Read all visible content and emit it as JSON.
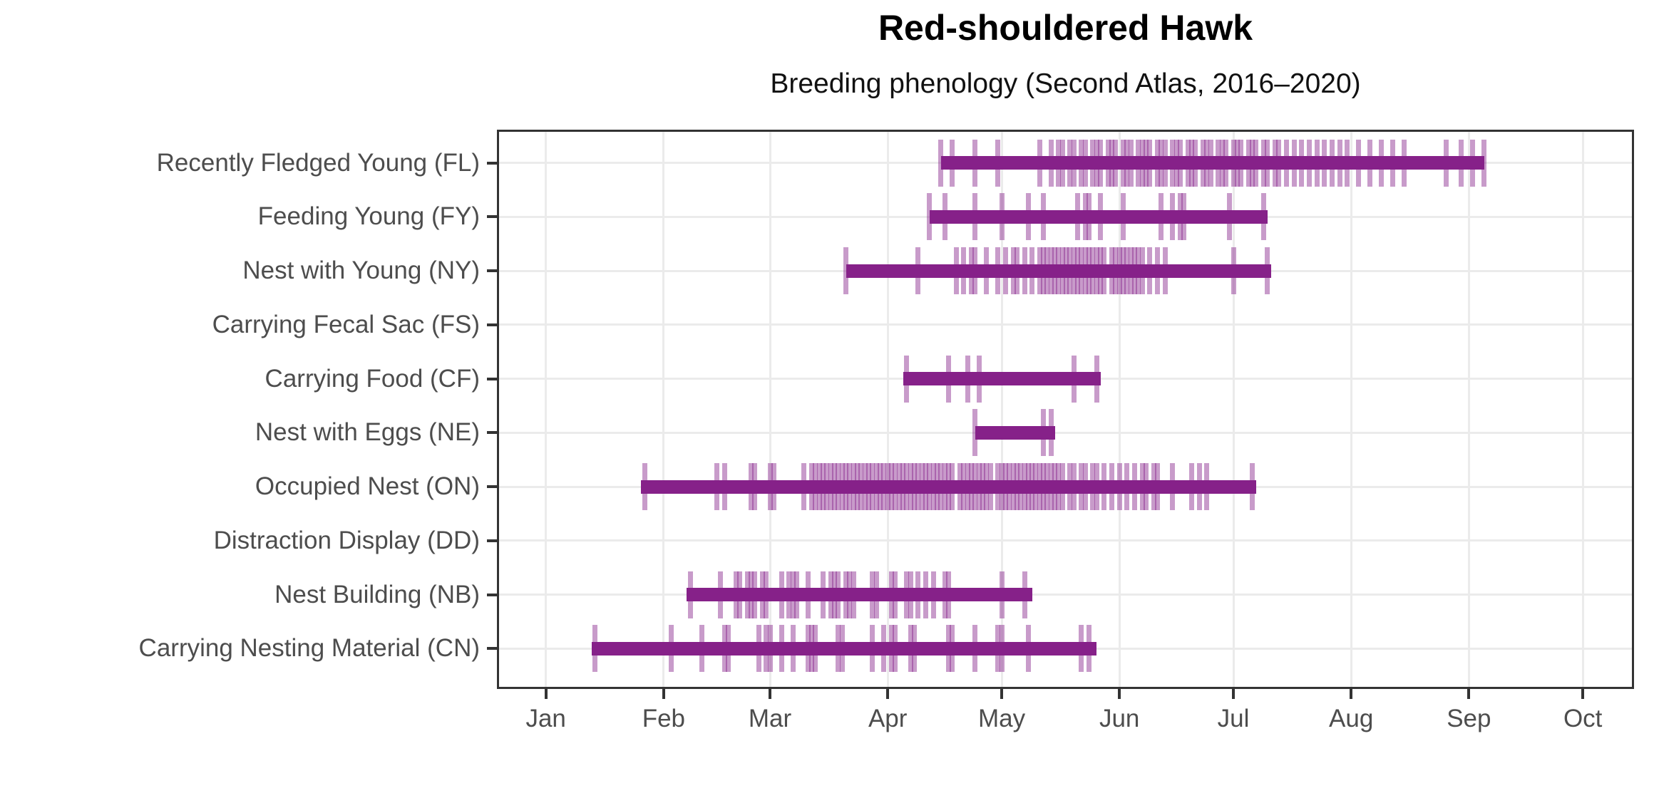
{
  "title": "Red-shouldered Hawk",
  "subtitle": "Breeding phenology (Second Atlas, 2016–2020)",
  "colors": {
    "bar": "#862189",
    "observation_tick": "rgba(134,33,137,0.45)",
    "gridline": "#EBEBEB",
    "panel_border": "#333333",
    "axis_tick": "#333333",
    "axis_text": "#4D4D4D",
    "title_text": "#000000",
    "background": "#FFFFFF"
  },
  "chart_data": {
    "type": "bar",
    "variant": "horizontal-range-phenology-timeline",
    "title": "Red-shouldered Hawk",
    "subtitle": "Breeding phenology (Second Atlas, 2016–2020)",
    "x_unit": "day-of-year",
    "grid": "on",
    "legend": "none",
    "x_axis": {
      "domain_days": [
        -12,
        288
      ],
      "months": [
        {
          "label": "Jan",
          "day": 1
        },
        {
          "label": "Feb",
          "day": 32
        },
        {
          "label": "Mar",
          "day": 60
        },
        {
          "label": "Apr",
          "day": 91
        },
        {
          "label": "May",
          "day": 121
        },
        {
          "label": "Jun",
          "day": 152
        },
        {
          "label": "Jul",
          "day": 182
        },
        {
          "label": "Aug",
          "day": 213
        },
        {
          "label": "Sep",
          "day": 244
        },
        {
          "label": "Oct",
          "day": 274
        }
      ]
    },
    "rows": [
      {
        "code": "FL",
        "label": "Recently Fledged Young (FL)",
        "bar": [
          105,
          248
        ],
        "obs_ticks": [
          105,
          108,
          114,
          120,
          131,
          134,
          136,
          137,
          139,
          140,
          142,
          143,
          145,
          146,
          147,
          149,
          150,
          151,
          153,
          154,
          155,
          157,
          158,
          159,
          160,
          162,
          163,
          164,
          166,
          167,
          168,
          170,
          171,
          172,
          174,
          175,
          176,
          178,
          179,
          180,
          182,
          183,
          184,
          186,
          187,
          188,
          190,
          191,
          193,
          194,
          196,
          198,
          200,
          202,
          204,
          206,
          208,
          210,
          212,
          215,
          218,
          221,
          224,
          227,
          238,
          242,
          245,
          248
        ]
      },
      {
        "code": "FY",
        "label": "Feeding Young (FY)",
        "bar": [
          102,
          191
        ],
        "obs_ticks": [
          102,
          106,
          114,
          121,
          128,
          132,
          141,
          143,
          144,
          147,
          153,
          163,
          166,
          168,
          169,
          181,
          190
        ]
      },
      {
        "code": "NY",
        "label": "Nest with Young (NY)",
        "bar": [
          80,
          192
        ],
        "obs_ticks": [
          80,
          99,
          109,
          111,
          113,
          114,
          117,
          120,
          122,
          124,
          125,
          127,
          129,
          131,
          132,
          133,
          134,
          135,
          136,
          137,
          138,
          139,
          140,
          141,
          142,
          143,
          144,
          145,
          146,
          147,
          148,
          150,
          151,
          152,
          153,
          154,
          155,
          156,
          157,
          158,
          160,
          162,
          164,
          182,
          191
        ]
      },
      {
        "code": "FS",
        "label": "Carrying Fecal Sac (FS)",
        "bar": null,
        "obs_ticks": []
      },
      {
        "code": "CF",
        "label": "Carrying Food (CF)",
        "bar": [
          95,
          147
        ],
        "obs_ticks": [
          96,
          107,
          112,
          115,
          140,
          146
        ]
      },
      {
        "code": "NE",
        "label": "Nest with Eggs (NE)",
        "bar": [
          114,
          135
        ],
        "obs_ticks": [
          114,
          132,
          134
        ]
      },
      {
        "code": "ON",
        "label": "Occupied Nest (ON)",
        "bar": [
          26,
          188
        ],
        "obs_ticks": [
          27,
          46,
          48,
          55,
          56,
          60,
          61,
          69,
          71,
          72,
          73,
          74,
          75,
          76,
          77,
          78,
          79,
          80,
          81,
          82,
          83,
          84,
          85,
          86,
          87,
          88,
          89,
          90,
          91,
          92,
          93,
          94,
          95,
          96,
          97,
          98,
          99,
          100,
          101,
          102,
          103,
          104,
          105,
          106,
          107,
          108,
          110,
          111,
          112,
          113,
          114,
          115,
          116,
          117,
          118,
          120,
          121,
          122,
          123,
          124,
          125,
          126,
          127,
          128,
          129,
          130,
          131,
          132,
          133,
          134,
          135,
          136,
          137,
          139,
          140,
          142,
          143,
          145,
          146,
          148,
          150,
          152,
          154,
          156,
          158,
          159,
          161,
          162,
          166,
          171,
          173,
          175,
          187
        ]
      },
      {
        "code": "DD",
        "label": "Distraction Display (DD)",
        "bar": null,
        "obs_ticks": []
      },
      {
        "code": "NB",
        "label": "Nest Building (NB)",
        "bar": [
          38,
          129
        ],
        "obs_ticks": [
          39,
          47,
          51,
          52,
          54,
          55,
          56,
          58,
          59,
          63,
          65,
          66,
          67,
          70,
          74,
          76,
          77,
          78,
          80,
          81,
          82,
          87,
          88,
          92,
          93,
          96,
          97,
          99,
          101,
          103,
          106,
          107,
          121,
          127
        ]
      },
      {
        "code": "CN",
        "label": "Carrying Nesting Material (CN)",
        "bar": [
          13,
          146
        ],
        "obs_ticks": [
          14,
          34,
          42,
          48,
          49,
          57,
          59,
          60,
          63,
          66,
          70,
          71,
          72,
          78,
          79,
          87,
          90,
          92,
          93,
          97,
          98,
          107,
          108,
          114,
          120,
          121,
          128,
          142,
          144
        ]
      }
    ]
  }
}
